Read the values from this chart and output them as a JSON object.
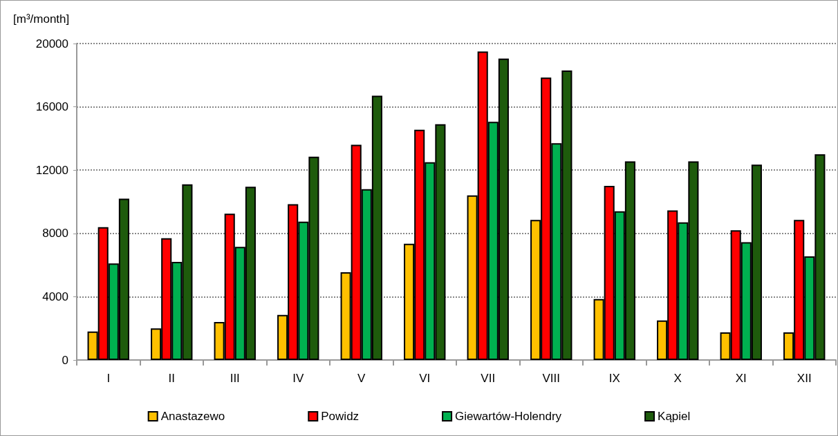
{
  "chart_data": {
    "type": "bar",
    "ylabel": "[m³/month]",
    "categories": [
      "I",
      "II",
      "III",
      "IV",
      "V",
      "VI",
      "VII",
      "VIII",
      "IX",
      "X",
      "XI",
      "XII"
    ],
    "series": [
      {
        "name": "Anastazewo",
        "color": "#ffc000",
        "values": [
          1800,
          2000,
          2400,
          2850,
          5550,
          7350,
          10400,
          8850,
          3850,
          2500,
          1750,
          1750
        ]
      },
      {
        "name": "Powidz",
        "color": "#ff0000",
        "values": [
          8400,
          7700,
          9250,
          9850,
          13600,
          14550,
          19500,
          17850,
          11000,
          9450,
          8200,
          8850
        ]
      },
      {
        "name": "Giewartów-Holendry",
        "color": "#00b050",
        "values": [
          6100,
          6200,
          7150,
          8750,
          10800,
          12500,
          15050,
          13700,
          9400,
          8700,
          7450,
          6550
        ]
      },
      {
        "name": "Kąpiel",
        "color": "#1e5b0c",
        "values": [
          10200,
          11100,
          10950,
          12850,
          16700,
          14900,
          19050,
          18300,
          12550,
          12550,
          12350,
          13000
        ]
      }
    ],
    "ylim": [
      0,
      20000
    ],
    "yticks": [
      0,
      4000,
      8000,
      12000,
      16000,
      20000
    ],
    "grid": "y",
    "legend": "bottom"
  }
}
